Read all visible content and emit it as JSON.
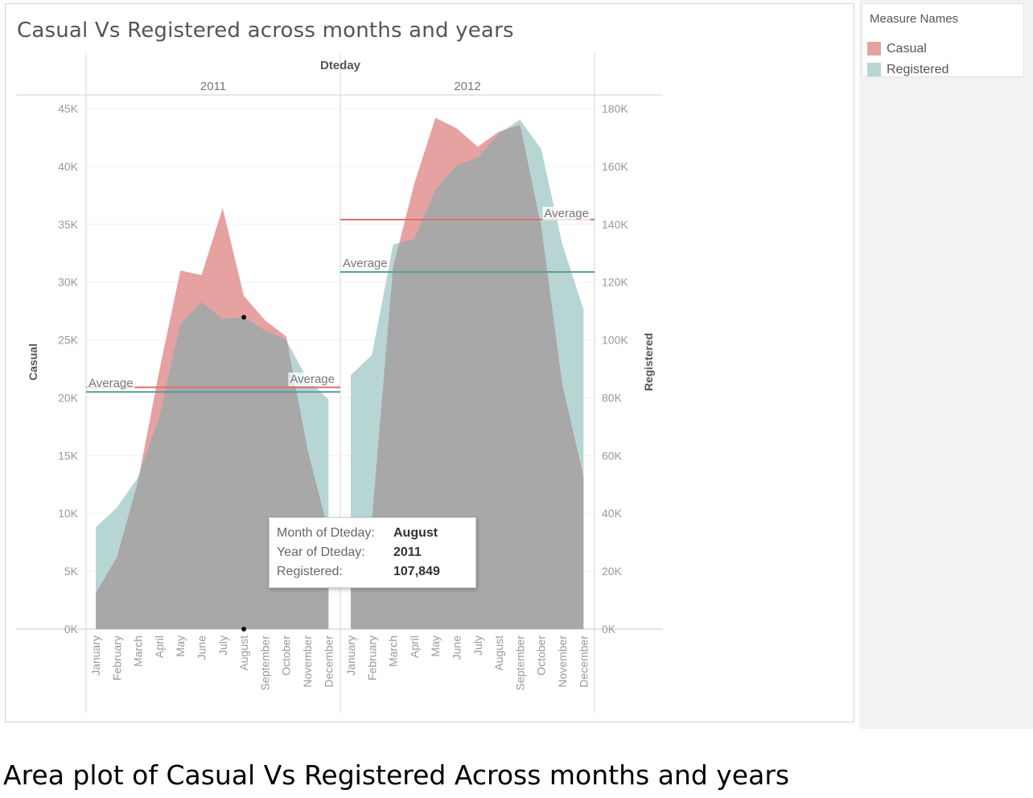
{
  "chart_data": {
    "type": "area",
    "title": "Casual Vs Registered across months and years",
    "column_header": "Dteday",
    "years": [
      "2011",
      "2012"
    ],
    "categories": [
      "January",
      "February",
      "March",
      "April",
      "May",
      "June",
      "July",
      "August",
      "September",
      "October",
      "November",
      "December"
    ],
    "y_left": {
      "label": "Casual",
      "range": [
        0,
        45000
      ],
      "ticks": [
        "0K",
        "5K",
        "10K",
        "15K",
        "20K",
        "25K",
        "30K",
        "35K",
        "40K",
        "45K"
      ]
    },
    "y_right": {
      "label": "Registered",
      "range": [
        0,
        180000
      ],
      "ticks": [
        "0K",
        "20K",
        "40K",
        "60K",
        "80K",
        "100K",
        "120K",
        "140K",
        "160K",
        "180K"
      ]
    },
    "series": [
      {
        "name": "Casual",
        "axis": "left",
        "color": "#e5a2a0",
        "values": {
          "2011": [
            3100,
            6200,
            12800,
            22300,
            31000,
            30600,
            36400,
            28800,
            26700,
            25300,
            15600,
            8400
          ],
          "2012": [
            8500,
            9400,
            31300,
            38500,
            44200,
            43300,
            41700,
            43000,
            43600,
            34800,
            21100,
            13200
          ]
        }
      },
      {
        "name": "Registered",
        "axis": "right",
        "color": "#b7d6d3",
        "values": {
          "2011": [
            35200,
            42000,
            52500,
            73100,
            105600,
            113000,
            107200,
            107849,
            103300,
            100000,
            86500,
            79400
          ],
          "2012": [
            87800,
            94800,
            133000,
            134900,
            151800,
            160400,
            163100,
            171300,
            176200,
            166000,
            133000,
            110600
          ]
        }
      }
    ],
    "reference_lines": [
      {
        "series": "Casual",
        "year": "2011",
        "value": 20900,
        "label": "Average",
        "color": "#d9706f"
      },
      {
        "series": "Registered",
        "year": "2011",
        "value": 82000,
        "label": "Average",
        "color": "#5a9b98"
      },
      {
        "series": "Casual",
        "year": "2012",
        "value": 35400,
        "label": "Average",
        "color": "#d9706f"
      },
      {
        "series": "Registered",
        "year": "2012",
        "value": 123500,
        "label": "Average",
        "color": "#5a9b98"
      }
    ],
    "overlap_color": "#a8a8a8",
    "legend": {
      "title": "Measure Names",
      "placement": "right"
    },
    "tooltip": {
      "month_label": "Month of Dteday:",
      "month": "August",
      "year_label": "Year of Dteday:",
      "year": "2011",
      "measure_label": "Registered:",
      "measure_value": "107,849"
    }
  },
  "caption": "Area plot of Casual Vs Registered Across months and years"
}
